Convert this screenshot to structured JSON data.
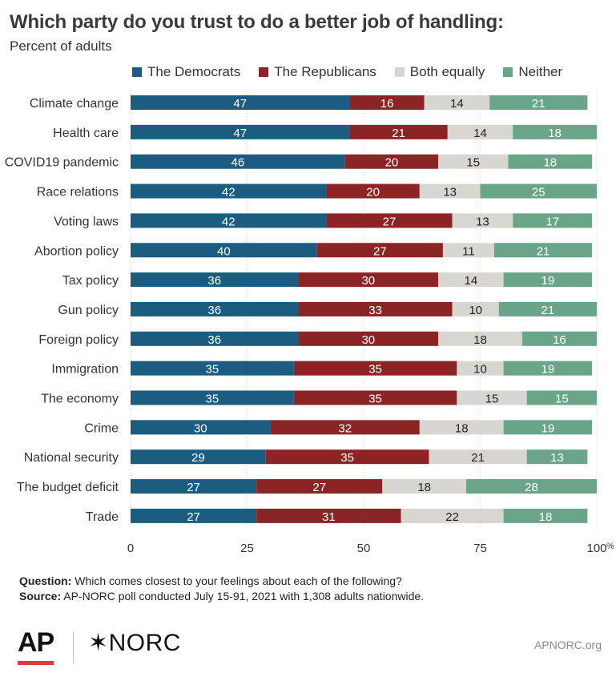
{
  "header": {
    "title": "Which party do you trust to do a better job of handling:",
    "subtitle": "Percent of adults"
  },
  "legend": [
    {
      "label": "The Democrats",
      "color": "#1c5c80"
    },
    {
      "label": "The Republicans",
      "color": "#8b2525"
    },
    {
      "label": "Both equally",
      "color": "#d8d6d0"
    },
    {
      "label": "Neither",
      "color": "#6aa58a"
    }
  ],
  "chart_data": {
    "type": "bar",
    "orientation": "horizontal",
    "stacked": true,
    "title": "Which party do you trust to do a better job of handling:",
    "subtitle": "Percent of adults",
    "categories": [
      "Climate change",
      "Health care",
      "COVID19 pandemic",
      "Race relations",
      "Voting laws",
      "Abortion policy",
      "Tax policy",
      "Gun policy",
      "Foreign policy",
      "Immigration",
      "The economy",
      "Crime",
      "National security",
      "The budget deficit",
      "Trade"
    ],
    "series": [
      {
        "name": "The Democrats",
        "color": "#1c5c80",
        "values": [
          47,
          47,
          46,
          42,
          42,
          40,
          36,
          36,
          36,
          35,
          35,
          30,
          29,
          27,
          27
        ]
      },
      {
        "name": "The Republicans",
        "color": "#8b2525",
        "values": [
          16,
          21,
          20,
          20,
          27,
          27,
          30,
          33,
          30,
          35,
          35,
          32,
          35,
          27,
          31
        ]
      },
      {
        "name": "Both equally",
        "color": "#d8d6d0",
        "values": [
          14,
          14,
          15,
          13,
          13,
          11,
          14,
          10,
          18,
          10,
          15,
          18,
          21,
          18,
          22
        ]
      },
      {
        "name": "Neither",
        "color": "#6aa58a",
        "values": [
          21,
          18,
          18,
          25,
          17,
          21,
          19,
          21,
          16,
          19,
          15,
          19,
          13,
          28,
          18
        ]
      }
    ],
    "xlim": [
      0,
      100
    ],
    "xticks": [
      "0",
      "25",
      "50",
      "75",
      "100"
    ],
    "xtick_suffix": "%",
    "legend_position": "top",
    "grid": true
  },
  "footer": {
    "question_label": "Question:",
    "question_text": " Which comes closest to your feelings about each of the following?",
    "source_label": "Source:",
    "source_text": " AP-NORC poll conducted July 15-91, 2021 with 1,308 adults nationwide.",
    "ap_logo": "AP",
    "norc_logo": "✶NORC",
    "credit": "APNORC.org"
  }
}
